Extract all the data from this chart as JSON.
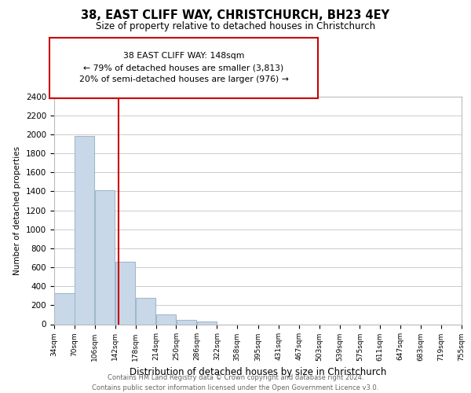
{
  "title": "38, EAST CLIFF WAY, CHRISTCHURCH, BH23 4EY",
  "subtitle": "Size of property relative to detached houses in Christchurch",
  "xlabel": "Distribution of detached houses by size in Christchurch",
  "ylabel": "Number of detached properties",
  "bar_color": "#c8d8e8",
  "bar_edge_color": "#a0b8cc",
  "vline_x": 148,
  "vline_color": "#cc0000",
  "annotation_title": "38 EAST CLIFF WAY: 148sqm",
  "annotation_line1": "← 79% of detached houses are smaller (3,813)",
  "annotation_line2": "20% of semi-detached houses are larger (976) →",
  "bin_edges": [
    34,
    70,
    106,
    142,
    178,
    214,
    250,
    286,
    322,
    358,
    395,
    431,
    467,
    503,
    539,
    575,
    611,
    647,
    683,
    719,
    755
  ],
  "bin_counts": [
    325,
    1980,
    1415,
    655,
    280,
    100,
    45,
    30,
    0,
    0,
    0,
    0,
    0,
    0,
    0,
    0,
    0,
    0,
    0,
    0
  ],
  "ylim": [
    0,
    2400
  ],
  "yticks": [
    0,
    200,
    400,
    600,
    800,
    1000,
    1200,
    1400,
    1600,
    1800,
    2000,
    2200,
    2400
  ],
  "footer_line1": "Contains HM Land Registry data © Crown copyright and database right 2024.",
  "footer_line2": "Contains public sector information licensed under the Open Government Licence v3.0.",
  "background_color": "#ffffff",
  "grid_color": "#cccccc"
}
